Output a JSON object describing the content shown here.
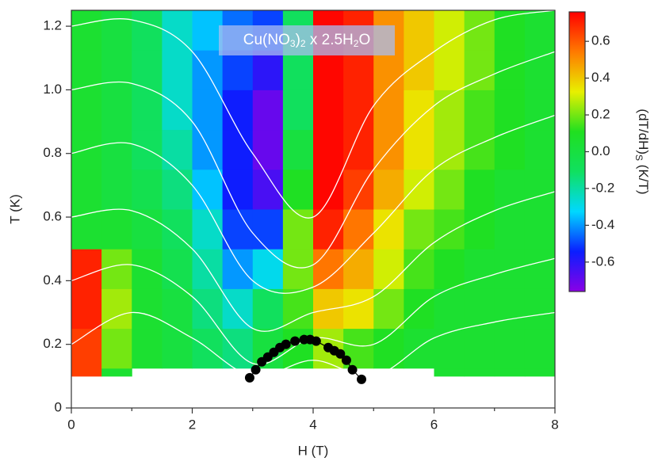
{
  "chart_data": {
    "type": "heatmap",
    "x_label": "H (T)",
    "y_label": "T (K)",
    "annotation": [
      {
        "text": "Cu(NO"
      },
      {
        "text": "3",
        "sub": true
      },
      {
        "text": ")"
      },
      {
        "text": "2",
        "sub": true
      },
      {
        "text": " x 2.5H"
      },
      {
        "text": "2",
        "sub": true
      },
      {
        "text": "O"
      }
    ],
    "colorbar_label": [
      {
        "text": "(dT/dH)"
      },
      {
        "text": "S",
        "sub": true
      },
      {
        "text": " (K/T)"
      }
    ],
    "xlim": [
      0,
      8
    ],
    "ylim": [
      0,
      1.25
    ],
    "xticks": [
      0,
      2,
      4,
      6,
      8
    ],
    "xticks_minor": [
      1,
      3,
      5,
      7
    ],
    "yticks": [
      0,
      0.2,
      0.4,
      0.6,
      0.8,
      {
        "value": 1,
        "label": "1.0"
      },
      1.2
    ],
    "clim": [
      -0.76,
      0.76
    ],
    "cticks": [
      -0.6,
      -0.4,
      -0.2,
      {
        "value": 0,
        "label": "0.0"
      },
      0.2,
      0.4,
      0.6
    ],
    "colormap": [
      "#8a00e6",
      "#0a1eff",
      "#00d8ff",
      "#10e060",
      "#20e020",
      "#e8f000",
      "#ff7a00",
      "#ff0000"
    ],
    "hbins": [
      0,
      0.5,
      1,
      1.5,
      2,
      2.5,
      3,
      3.5,
      4,
      4.5,
      5,
      5.5,
      6,
      6.5,
      7,
      7.5,
      8
    ],
    "tbins": [
      0.1,
      0.125,
      0.25,
      0.375,
      0.5,
      0.625,
      0.75,
      0.875,
      1,
      1.125,
      1.25
    ],
    "z": [
      [
        0.65,
        0.05,
        null,
        null,
        null,
        null,
        null,
        null,
        null,
        null,
        null,
        null,
        0.05,
        0.05,
        0.05,
        0.05
      ],
      [
        0.65,
        0.2,
        0.05,
        0,
        -0.1,
        -0.15,
        0,
        0.1,
        0.25,
        0.15,
        0.1,
        0.05,
        0.05,
        0.05,
        0.05,
        0.05
      ],
      [
        0.7,
        0.25,
        0.05,
        0,
        -0.15,
        -0.25,
        -0.1,
        0.15,
        0.4,
        0.35,
        0.2,
        0.1,
        0.05,
        0.05,
        0.05,
        0.05
      ],
      [
        0.7,
        0.2,
        0.05,
        -0.05,
        -0.2,
        -0.4,
        -0.3,
        0.2,
        0.55,
        0.45,
        0.3,
        0.15,
        0.1,
        0.05,
        0.05,
        0.05
      ],
      [
        0.05,
        0.05,
        0,
        -0.1,
        -0.25,
        -0.5,
        -0.5,
        0.2,
        0.7,
        0.55,
        0.35,
        0.2,
        0.15,
        0.1,
        0.05,
        0.05
      ],
      [
        0.05,
        0,
        -0.05,
        -0.15,
        -0.35,
        -0.55,
        -0.65,
        0.1,
        0.75,
        0.65,
        0.45,
        0.3,
        0.2,
        0.1,
        0.05,
        0.05
      ],
      [
        0.05,
        0,
        -0.1,
        -0.2,
        -0.4,
        -0.55,
        -0.7,
        0,
        0.75,
        0.7,
        0.5,
        0.35,
        0.25,
        0.15,
        0.1,
        0.05
      ],
      [
        0.05,
        0,
        -0.1,
        -0.25,
        -0.4,
        -0.55,
        -0.7,
        -0.1,
        0.75,
        0.7,
        0.5,
        0.35,
        0.25,
        0.15,
        0.1,
        0.05
      ],
      [
        0.05,
        0,
        -0.1,
        -0.25,
        -0.4,
        -0.5,
        -0.6,
        -0.1,
        0.75,
        0.7,
        0.5,
        0.4,
        0.3,
        0.2,
        0.1,
        0.05
      ],
      [
        0.05,
        0,
        -0.1,
        -0.25,
        -0.35,
        -0.45,
        -0.5,
        -0.1,
        0.75,
        0.7,
        0.5,
        0.4,
        0.3,
        0.2,
        0.1,
        0.05
      ]
    ],
    "isentropes": {
      "color": "#ffffff",
      "x": [
        0,
        1,
        2,
        3,
        4,
        5,
        6,
        7,
        8
      ],
      "series": [
        {
          "values": [
            1.2,
            1.22,
            1.12,
            0.8,
            0.6,
            0.95,
            1.12,
            1.22,
            1.25
          ]
        },
        {
          "values": [
            1.0,
            1.02,
            0.9,
            0.55,
            0.45,
            0.75,
            0.95,
            1.05,
            1.12
          ]
        },
        {
          "values": [
            0.8,
            0.83,
            0.7,
            0.4,
            0.38,
            0.55,
            0.75,
            0.85,
            0.92
          ]
        },
        {
          "values": [
            0.6,
            0.62,
            0.5,
            0.25,
            0.3,
            0.35,
            0.52,
            0.62,
            0.68
          ]
        },
        {
          "values": [
            0.4,
            0.45,
            0.35,
            0.14,
            0.22,
            0.2,
            0.35,
            0.42,
            0.47
          ]
        },
        {
          "values": [
            0.2,
            0.3,
            0.22,
            0.1,
            0.15,
            0.1,
            0.22,
            0.27,
            0.3
          ]
        }
      ]
    },
    "phase_boundary": {
      "color": "#000000",
      "x": [
        2.95,
        3.05,
        3.15,
        3.25,
        3.35,
        3.45,
        3.55,
        3.7,
        3.85,
        3.95,
        4.05,
        4.25,
        4.35,
        4.45,
        4.55,
        4.65,
        4.8
      ],
      "y": [
        0.095,
        0.12,
        0.145,
        0.16,
        0.175,
        0.19,
        0.2,
        0.21,
        0.215,
        0.215,
        0.21,
        0.19,
        0.18,
        0.17,
        0.15,
        0.12,
        0.09
      ]
    }
  }
}
